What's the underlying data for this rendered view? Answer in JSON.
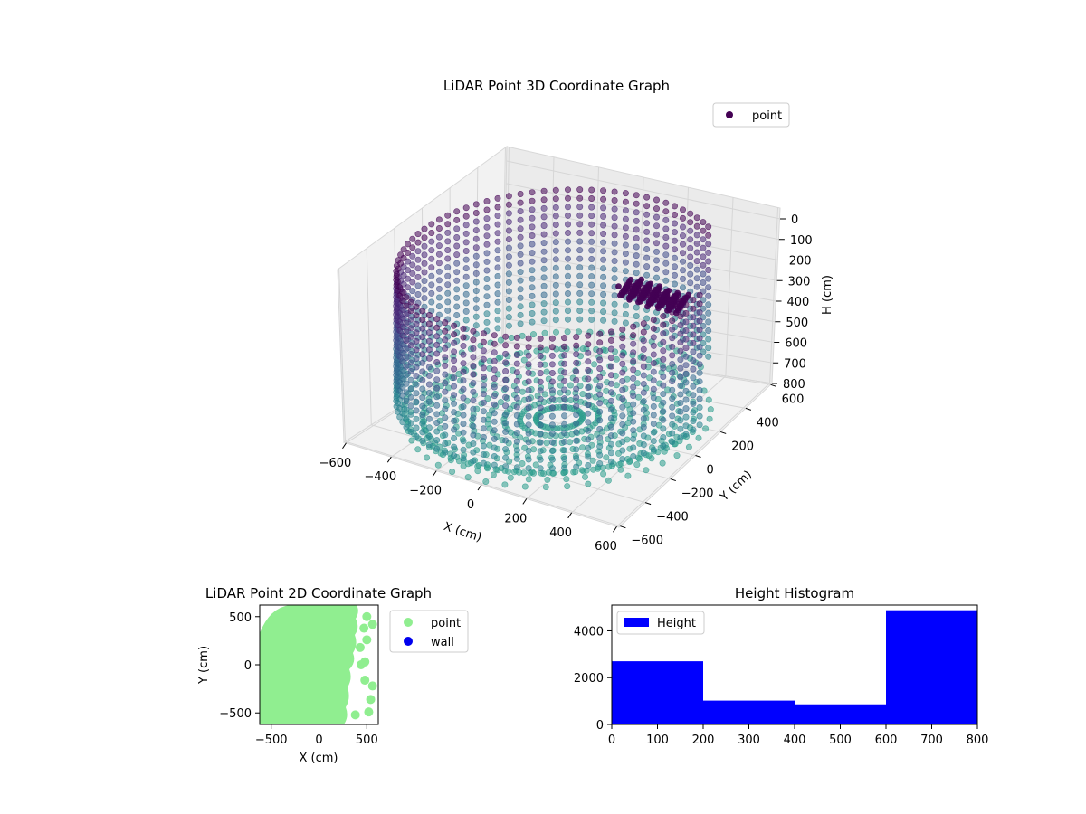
{
  "chart_data": [
    {
      "type": "scatter3d",
      "title": "LiDAR Point 3D Coordinate Graph",
      "xlabel": "X (cm)",
      "ylabel": "Y (cm)",
      "zlabel": "H (cm)",
      "x_ticks": [
        "−600",
        "−400",
        "−200",
        "0",
        "200",
        "400",
        "600"
      ],
      "y_ticks": [
        "−600",
        "−400",
        "−200",
        "0",
        "200",
        "400",
        "600"
      ],
      "z_ticks": [
        "0",
        "100",
        "200",
        "300",
        "400",
        "500",
        "600",
        "700",
        "800"
      ],
      "xlim": [
        -600,
        600
      ],
      "ylim": [
        -600,
        600
      ],
      "zlim": [
        800,
        0
      ],
      "legend": {
        "label": "point",
        "placement": "upper-right",
        "color": "#440154"
      },
      "colormap": [
        "#440154",
        "#482677",
        "#3e4a89",
        "#31688e",
        "#26828e",
        "#2a9d8c"
      ],
      "grid": true
    },
    {
      "type": "scatter",
      "title": "LiDAR Point 2D Coordinate Graph",
      "xlabel": "X (cm)",
      "ylabel": "Y (cm)",
      "x_ticks": [
        "−500",
        "0",
        "500"
      ],
      "y_ticks": [
        "500",
        "0",
        "−500"
      ],
      "xlim": [
        -620,
        620
      ],
      "ylim": [
        -620,
        620
      ],
      "legend": [
        {
          "label": "point",
          "color": "#90ee90"
        },
        {
          "label": "wall",
          "color": "#0000ee"
        }
      ],
      "legend_placement": "outside-right",
      "grid": false
    },
    {
      "type": "bar",
      "title": "Height Histogram",
      "x_ticks": [
        "0",
        "100",
        "200",
        "300",
        "400",
        "500",
        "600",
        "700",
        "800"
      ],
      "y_ticks": [
        "0",
        "2000",
        "4000"
      ],
      "bins": [
        [
          0,
          200
        ],
        [
          200,
          400
        ],
        [
          400,
          600
        ],
        [
          600,
          800
        ]
      ],
      "values": [
        2700,
        1020,
        860,
        4880
      ],
      "xlim": [
        0,
        800
      ],
      "ylim": [
        0,
        5100
      ],
      "series": [
        {
          "name": "Height",
          "color": "#0000ff"
        }
      ],
      "legend_placement": "upper-left",
      "grid": false
    }
  ]
}
